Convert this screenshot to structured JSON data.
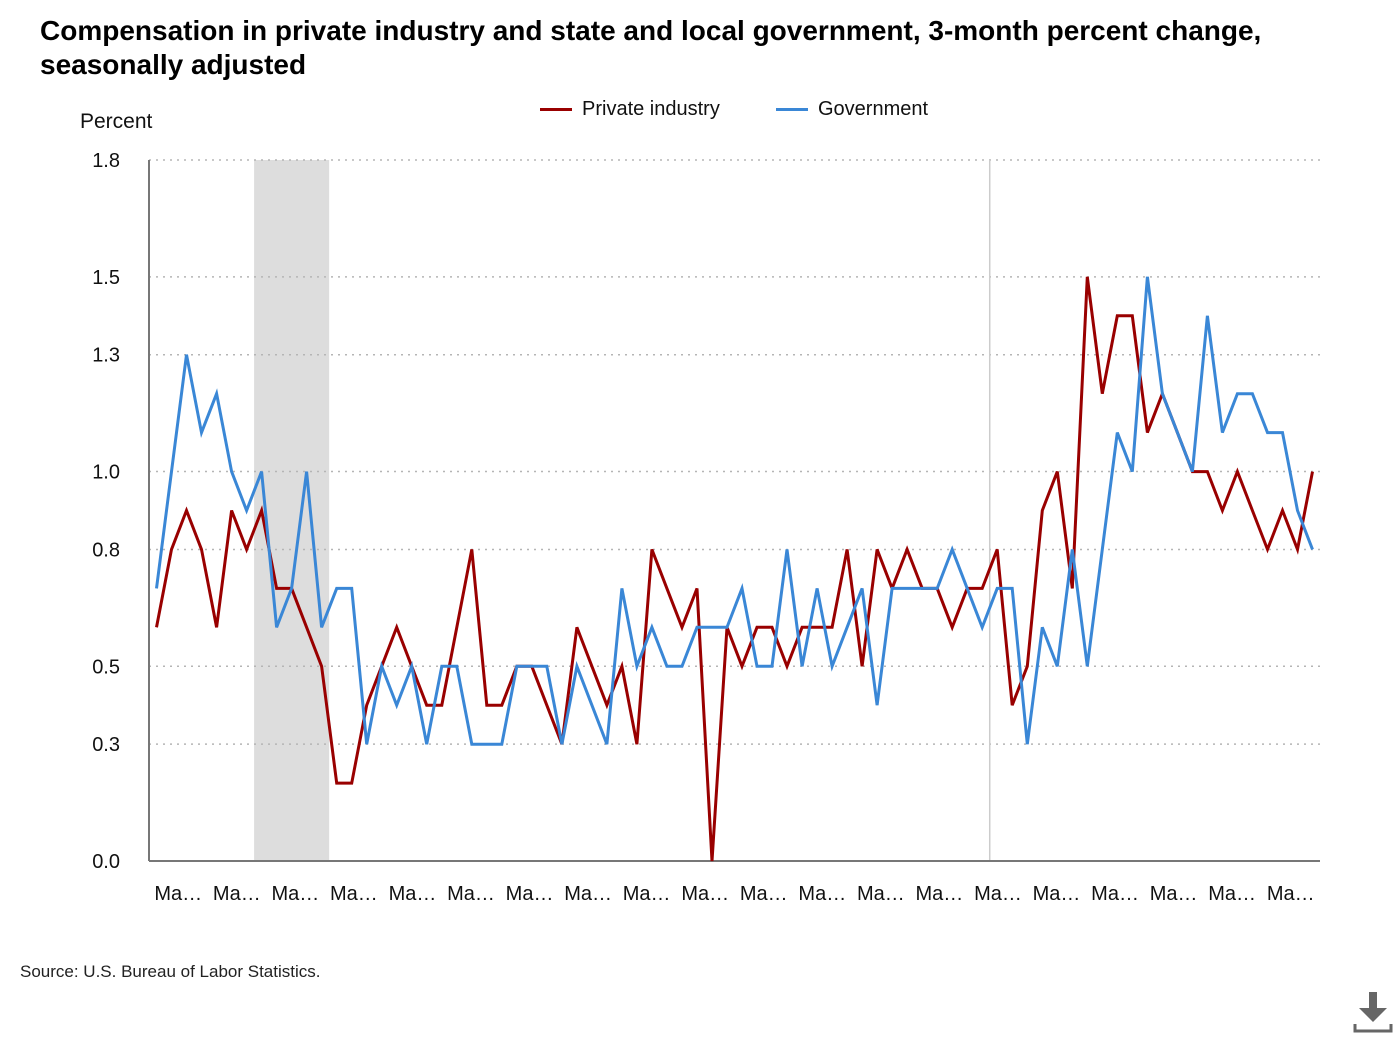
{
  "chart_data": {
    "type": "line",
    "title": "Compensation in private industry and state and local government, 3-month percent change, seasonally adjusted",
    "ylabel": "Percent",
    "ylim": [
      0,
      1.8
    ],
    "y_ticks": [
      "0.0",
      "0.3",
      "0.5",
      "0.8",
      "1.0",
      "1.3",
      "1.5",
      "1.8"
    ],
    "y_tick_values": [
      0,
      0.3,
      0.5,
      0.8,
      1.0,
      1.3,
      1.5,
      1.8
    ],
    "x_tick_labels": [
      "Ma…",
      "Ma…",
      "Ma…",
      "Ma…",
      "Ma…",
      "Ma…",
      "Ma…",
      "Ma…",
      "Ma…",
      "Ma…",
      "Ma…",
      "Ma…",
      "Ma…",
      "Ma…",
      "Ma…",
      "Ma…",
      "Ma…",
      "Ma…",
      "Ma…",
      "Ma…"
    ],
    "grid": true,
    "legend_position": "top-center",
    "shaded_period_quarters": [
      7,
      12
    ],
    "reference_line_quarter": 56,
    "series": [
      {
        "name": "Private industry",
        "color": "#990000",
        "values": [
          0.6,
          0.8,
          0.9,
          0.8,
          0.6,
          0.9,
          0.8,
          0.9,
          0.7,
          0.7,
          0.6,
          0.5,
          0.2,
          0.2,
          0.4,
          0.5,
          0.6,
          0.5,
          0.4,
          0.4,
          0.6,
          0.8,
          0.4,
          0.4,
          0.5,
          0.5,
          0.4,
          0.3,
          0.6,
          0.5,
          0.4,
          0.5,
          0.3,
          0.8,
          0.7,
          0.6,
          0.7,
          0.0,
          0.6,
          0.5,
          0.6,
          0.6,
          0.5,
          0.6,
          0.6,
          0.6,
          0.8,
          0.5,
          0.8,
          0.7,
          0.8,
          0.7,
          0.7,
          0.6,
          0.7,
          0.7,
          0.8,
          0.4,
          0.5,
          0.9,
          1.0,
          0.7,
          1.5,
          1.2,
          1.4,
          1.4,
          1.1,
          1.2,
          1.1,
          1.0,
          1.0,
          0.9,
          1.0,
          0.9,
          0.8,
          0.9,
          0.8,
          1.0
        ]
      },
      {
        "name": "Government",
        "color": "#3a87d6",
        "values": [
          0.7,
          1.0,
          1.3,
          1.1,
          1.2,
          1.0,
          0.9,
          1.0,
          0.6,
          0.7,
          1.0,
          0.6,
          0.7,
          0.7,
          0.3,
          0.5,
          0.4,
          0.5,
          0.3,
          0.5,
          0.5,
          0.3,
          0.3,
          0.3,
          0.5,
          0.5,
          0.5,
          0.3,
          0.5,
          0.4,
          0.3,
          0.7,
          0.5,
          0.6,
          0.5,
          0.5,
          0.6,
          0.6,
          0.6,
          0.7,
          0.5,
          0.5,
          0.8,
          0.5,
          0.7,
          0.5,
          0.6,
          0.7,
          0.4,
          0.7,
          0.7,
          0.7,
          0.7,
          0.8,
          0.7,
          0.6,
          0.7,
          0.7,
          0.3,
          0.6,
          0.5,
          0.8,
          0.5,
          0.8,
          1.1,
          1.0,
          1.5,
          1.2,
          1.1,
          1.0,
          1.4,
          1.1,
          1.2,
          1.2,
          1.1,
          1.1,
          0.9,
          0.8
        ]
      }
    ]
  },
  "source_note": "Source: U.S. Bureau of Labor Statistics.",
  "icons": {
    "download": "download-icon"
  }
}
